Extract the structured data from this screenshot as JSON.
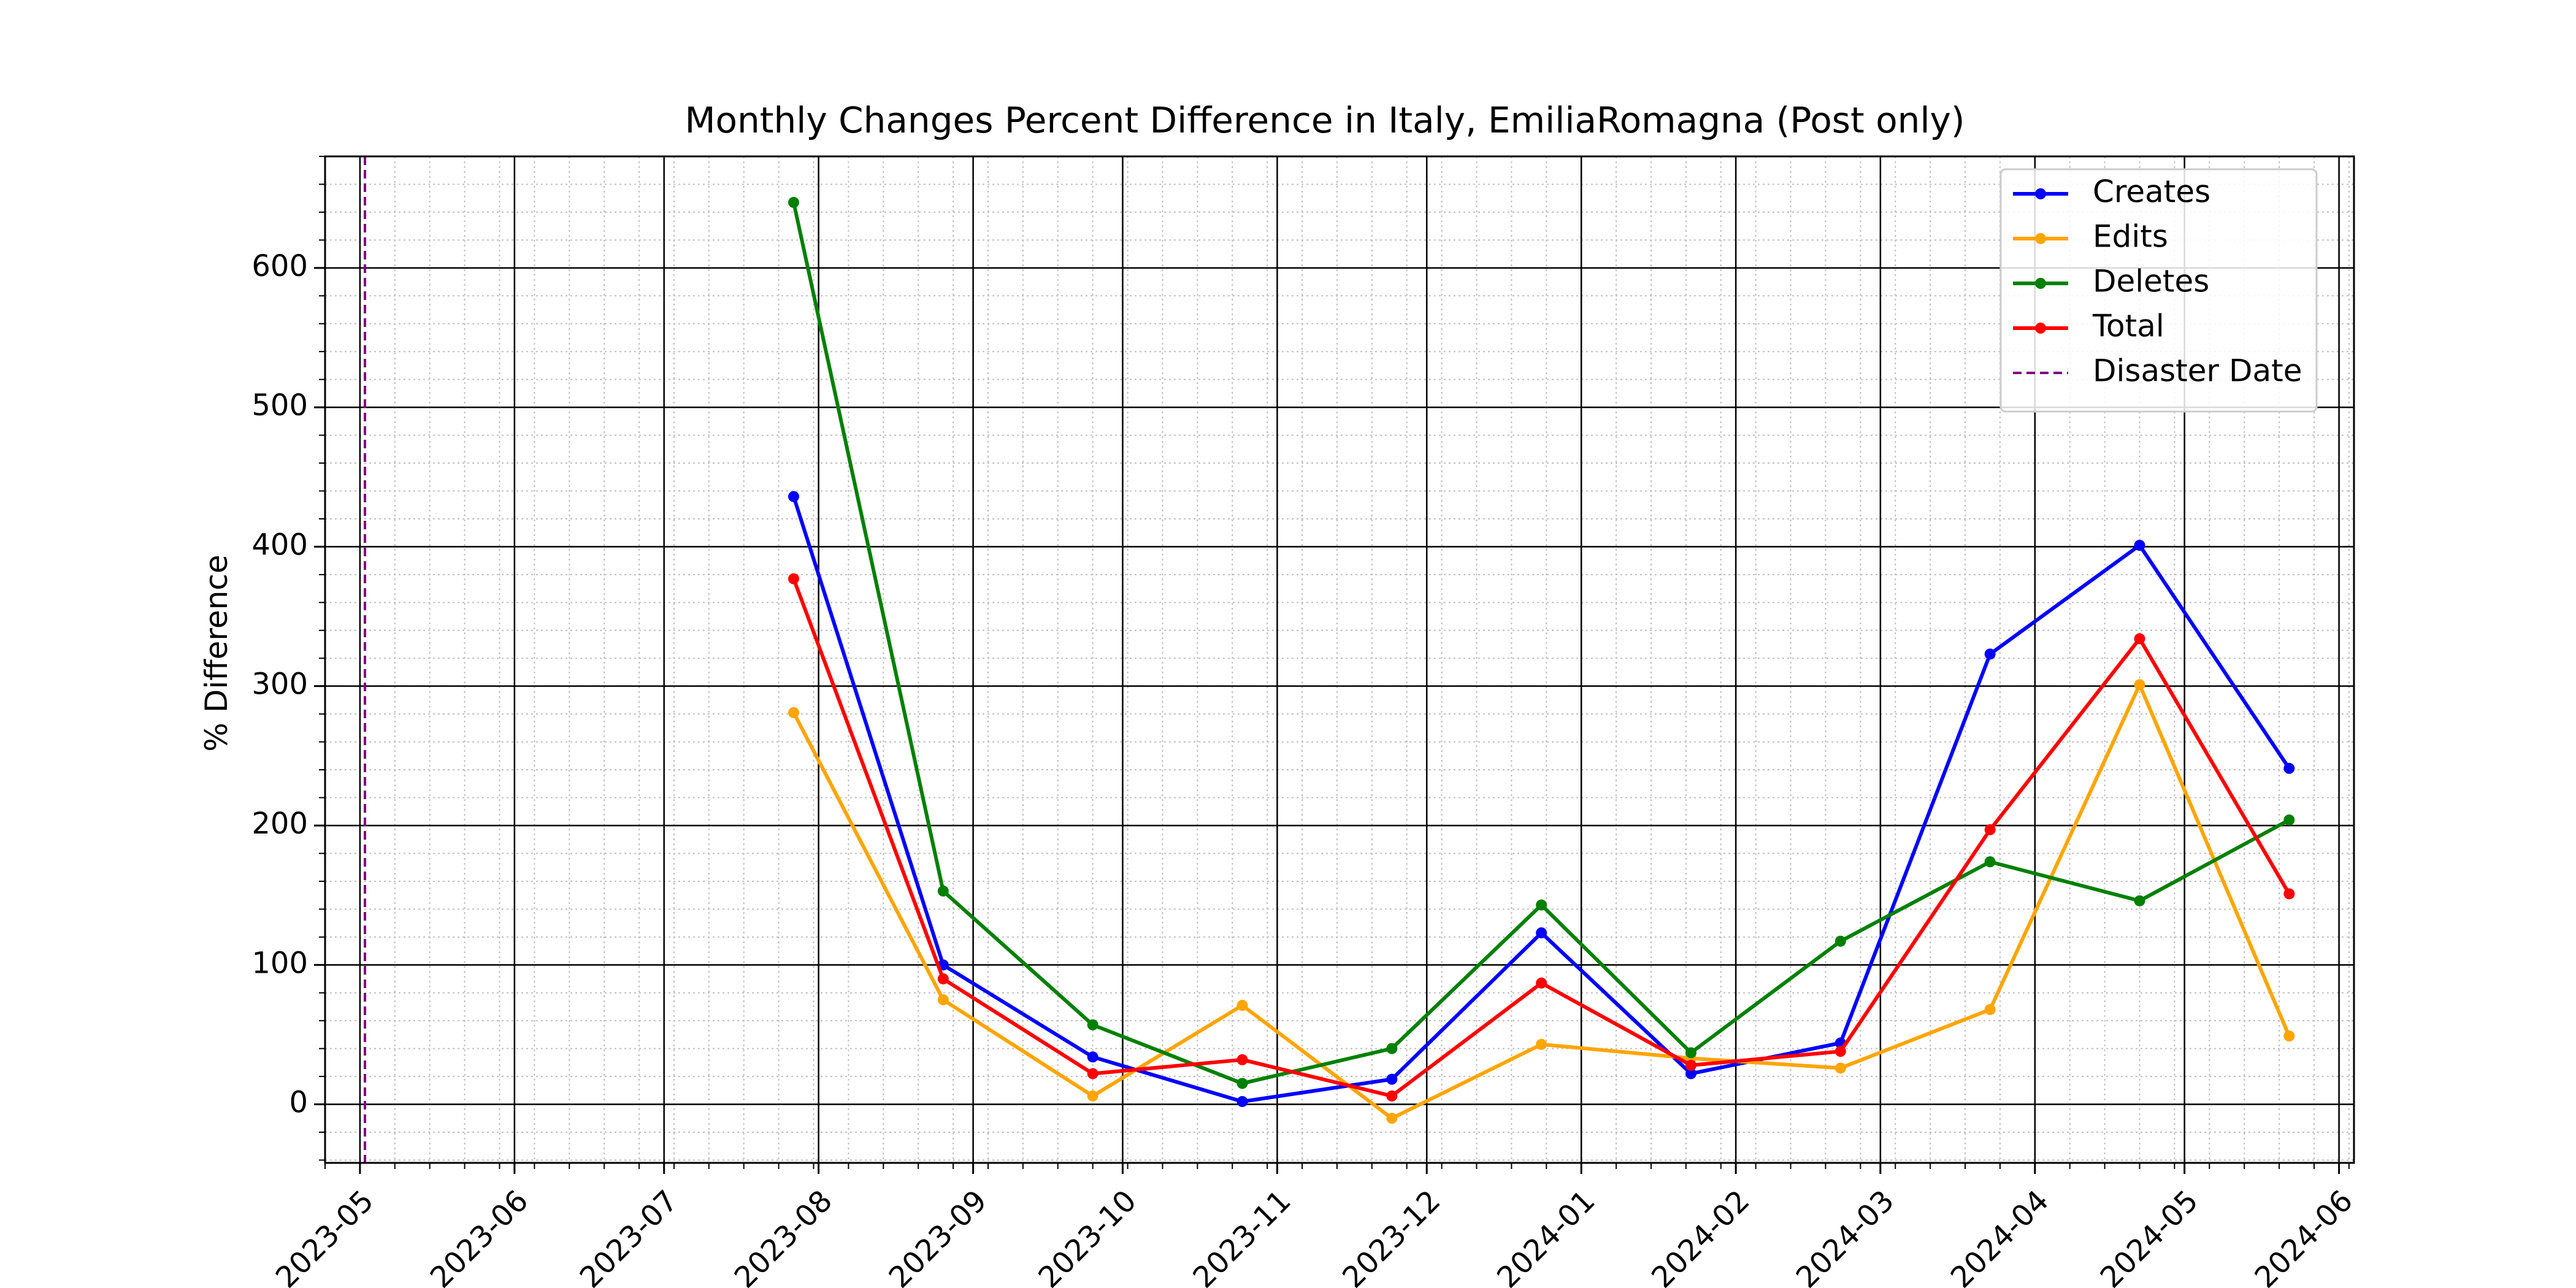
{
  "chart_data": {
    "type": "line",
    "title": "Monthly Changes Percent Difference in Italy, EmiliaRomagna (Post only)",
    "xlabel": "",
    "ylabel": "% Difference",
    "x_tick_labels": [
      "2023-05",
      "2023-06",
      "2023-07",
      "2023-08",
      "2023-09",
      "2023-10",
      "2023-11",
      "2023-12",
      "2024-01",
      "2024-02",
      "2024-03",
      "2024-04",
      "2024-05",
      "2024-06"
    ],
    "y_tick_labels": [
      "0",
      "100",
      "200",
      "300",
      "400",
      "500",
      "600"
    ],
    "xlim": [
      "2023-04-24",
      "2024-06-04"
    ],
    "ylim": [
      -42,
      680
    ],
    "grid": "major and minor",
    "legend_position": "top-right",
    "x": [
      "2023-07-27",
      "2023-08-26",
      "2023-09-25",
      "2023-10-25",
      "2023-11-24",
      "2023-12-24",
      "2024-01-23",
      "2024-02-22",
      "2024-03-23",
      "2024-04-22",
      "2024-05-22"
    ],
    "series": [
      {
        "name": "Creates",
        "color": "#0000ff",
        "values": [
          436,
          100,
          34,
          2,
          18,
          123,
          22,
          44,
          323,
          401,
          241
        ]
      },
      {
        "name": "Edits",
        "color": "#ffa500",
        "values": [
          281,
          75,
          6,
          71,
          -10,
          43,
          33,
          26,
          68,
          301,
          49
        ]
      },
      {
        "name": "Deletes",
        "color": "#008000",
        "values": [
          647,
          153,
          57,
          15,
          40,
          143,
          37,
          117,
          174,
          146,
          204
        ]
      },
      {
        "name": "Total",
        "color": "#ff0000",
        "values": [
          377,
          90,
          22,
          32,
          6,
          87,
          28,
          38,
          197,
          334,
          151
        ]
      }
    ],
    "vline": {
      "name": "Disaster Date",
      "x": "2023-05-02",
      "color": "#800080",
      "style": "dashed"
    }
  }
}
